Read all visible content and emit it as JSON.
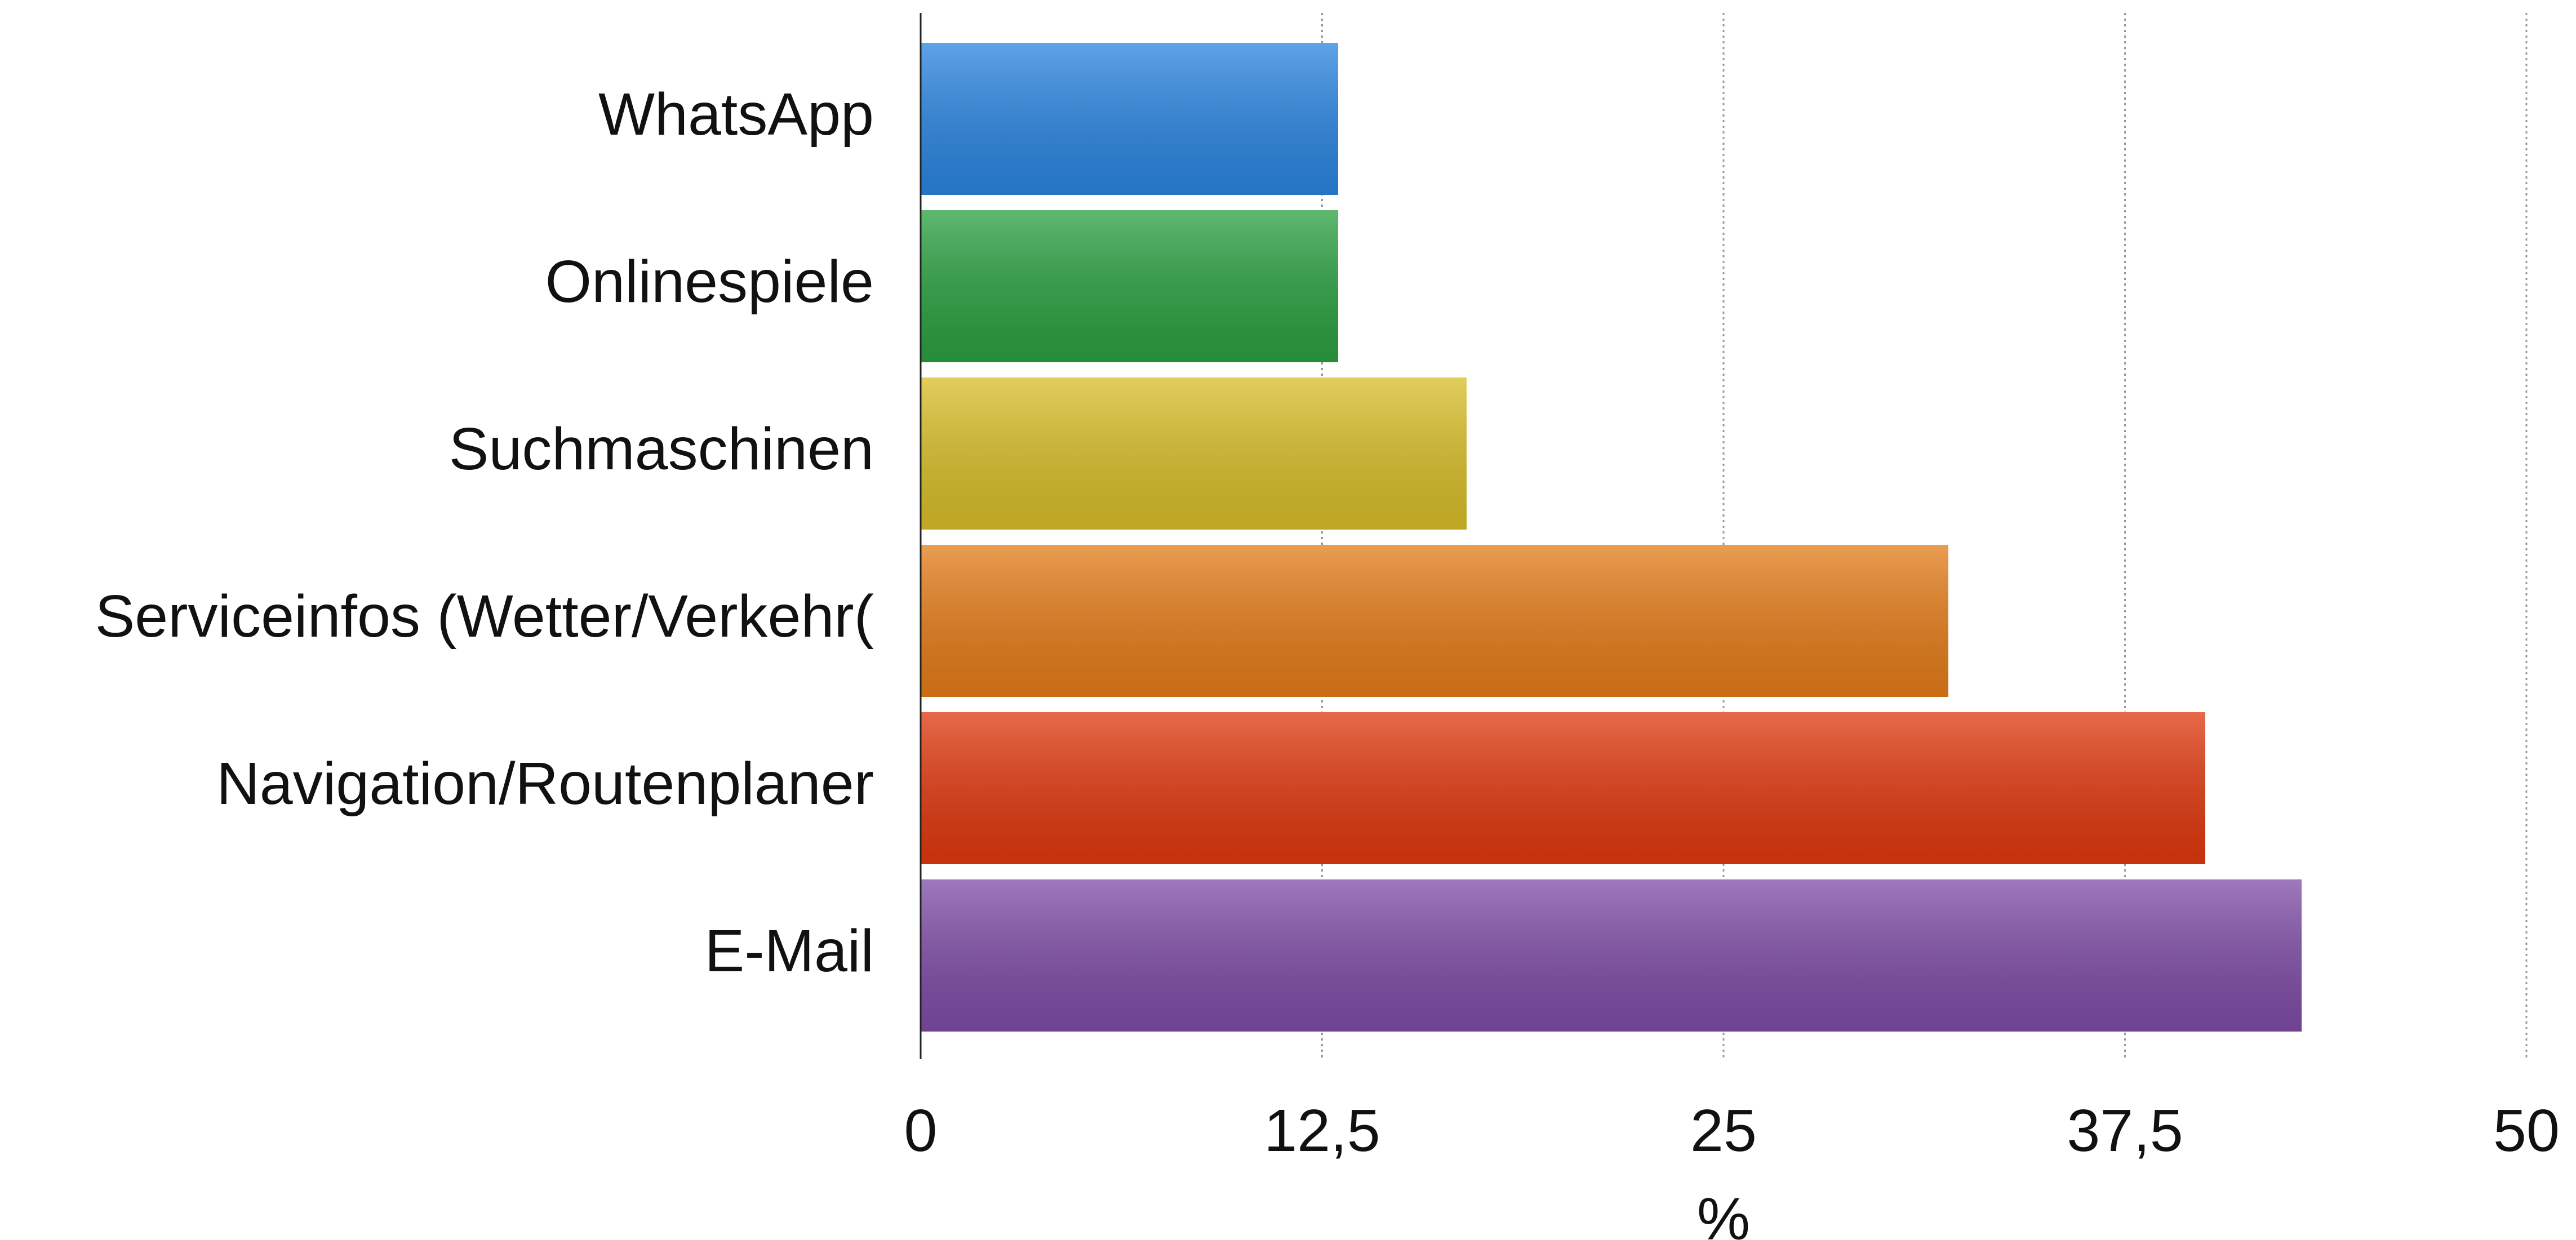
{
  "chart_data": {
    "type": "bar",
    "orientation": "horizontal",
    "categories": [
      "WhatsApp",
      "Onlinespiele",
      "Suchmaschinen",
      "Serviceinfos (Wetter/Verkehr(",
      "Navigation/Routenplaner",
      "E-Mail"
    ],
    "values": [
      13,
      13,
      17,
      32,
      40,
      43
    ],
    "colors": [
      "#2a85e0",
      "#2aa040",
      "#d8be28",
      "#e47c18",
      "#e0380e",
      "#7e4ca6"
    ],
    "xlabel": "%",
    "xlim": [
      0,
      50
    ],
    "xticks": [
      0,
      {
        "value": 12.5,
        "label": "12,5"
      },
      25,
      {
        "value": 37.5,
        "label": "37,5"
      },
      50
    ],
    "grid": true
  }
}
